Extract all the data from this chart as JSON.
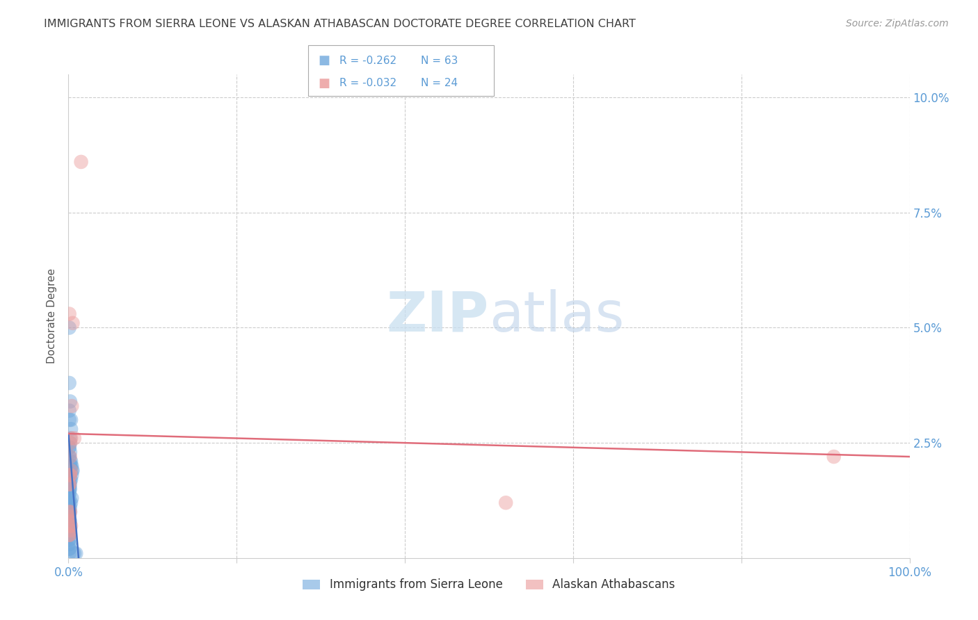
{
  "title": "IMMIGRANTS FROM SIERRA LEONE VS ALASKAN ATHABASCAN DOCTORATE DEGREE CORRELATION CHART",
  "source": "Source: ZipAtlas.com",
  "ylabel": "Doctorate Degree",
  "xlim": [
    0.0,
    1.0
  ],
  "ylim": [
    0.0,
    0.105
  ],
  "yticks": [
    0.0,
    0.025,
    0.05,
    0.075,
    0.1
  ],
  "ytick_labels": [
    "",
    "2.5%",
    "5.0%",
    "7.5%",
    "10.0%"
  ],
  "xticks": [
    0.0,
    0.2,
    0.4,
    0.6,
    0.8,
    1.0
  ],
  "xtick_labels": [
    "0.0%",
    "",
    "",
    "",
    "",
    "100.0%"
  ],
  "legend_blue_label": "Immigrants from Sierra Leone",
  "legend_pink_label": "Alaskan Athabascans",
  "legend_blue_r": "R = -0.262",
  "legend_blue_n": "N = 63",
  "legend_pink_r": "R = -0.032",
  "legend_pink_n": "N = 24",
  "blue_color": "#6fa8dc",
  "pink_color": "#ea9999",
  "blue_line_color": "#4472c4",
  "pink_line_color": "#e06c7a",
  "watermark_zip": "ZIP",
  "watermark_atlas": "atlas",
  "grid_color": "#cccccc",
  "title_color": "#404040",
  "axis_label_color": "#5b9bd5",
  "blue_scatter_x": [
    0.001,
    0.001,
    0.002,
    0.001,
    0.001,
    0.003,
    0.003,
    0.002,
    0.002,
    0.001,
    0.001,
    0.002,
    0.001,
    0.001,
    0.003,
    0.002,
    0.003,
    0.004,
    0.002,
    0.004,
    0.005,
    0.004,
    0.001,
    0.001,
    0.002,
    0.003,
    0.002,
    0.001,
    0.001,
    0.001,
    0.001,
    0.002,
    0.001,
    0.001,
    0.001,
    0.004,
    0.003,
    0.001,
    0.001,
    0.002,
    0.001,
    0.002,
    0.001,
    0.001,
    0.001,
    0.001,
    0.002,
    0.001,
    0.001,
    0.001,
    0.001,
    0.001,
    0.001,
    0.001,
    0.001,
    0.001,
    0.001,
    0.001,
    0.001,
    0.001,
    0.001,
    0.009,
    0.007
  ],
  "blue_scatter_y": [
    0.05,
    0.038,
    0.034,
    0.032,
    0.03,
    0.03,
    0.028,
    0.026,
    0.025,
    0.024,
    0.024,
    0.023,
    0.022,
    0.022,
    0.021,
    0.021,
    0.02,
    0.02,
    0.02,
    0.019,
    0.019,
    0.018,
    0.018,
    0.018,
    0.017,
    0.017,
    0.016,
    0.016,
    0.016,
    0.015,
    0.015,
    0.015,
    0.014,
    0.014,
    0.013,
    0.013,
    0.012,
    0.012,
    0.012,
    0.011,
    0.011,
    0.01,
    0.01,
    0.009,
    0.009,
    0.008,
    0.008,
    0.008,
    0.007,
    0.007,
    0.006,
    0.006,
    0.005,
    0.005,
    0.004,
    0.004,
    0.003,
    0.003,
    0.002,
    0.002,
    0.001,
    0.001,
    0.001
  ],
  "pink_scatter_x": [
    0.005,
    0.015,
    0.001,
    0.004,
    0.003,
    0.007,
    0.002,
    0.002,
    0.003,
    0.002,
    0.002,
    0.001,
    0.001,
    0.001,
    0.002,
    0.001,
    0.001,
    0.003,
    0.001,
    0.002,
    0.001,
    0.001,
    0.52,
    0.91
  ],
  "pink_scatter_y": [
    0.051,
    0.086,
    0.053,
    0.033,
    0.026,
    0.026,
    0.025,
    0.022,
    0.019,
    0.018,
    0.018,
    0.016,
    0.016,
    0.01,
    0.01,
    0.009,
    0.008,
    0.007,
    0.007,
    0.006,
    0.005,
    0.005,
    0.012,
    0.022
  ],
  "blue_trendline_x": [
    0.0,
    0.012
  ],
  "blue_trendline_y": [
    0.027,
    0.0
  ],
  "pink_trendline_x": [
    0.0,
    1.0
  ],
  "pink_trendline_y": [
    0.027,
    0.022
  ]
}
